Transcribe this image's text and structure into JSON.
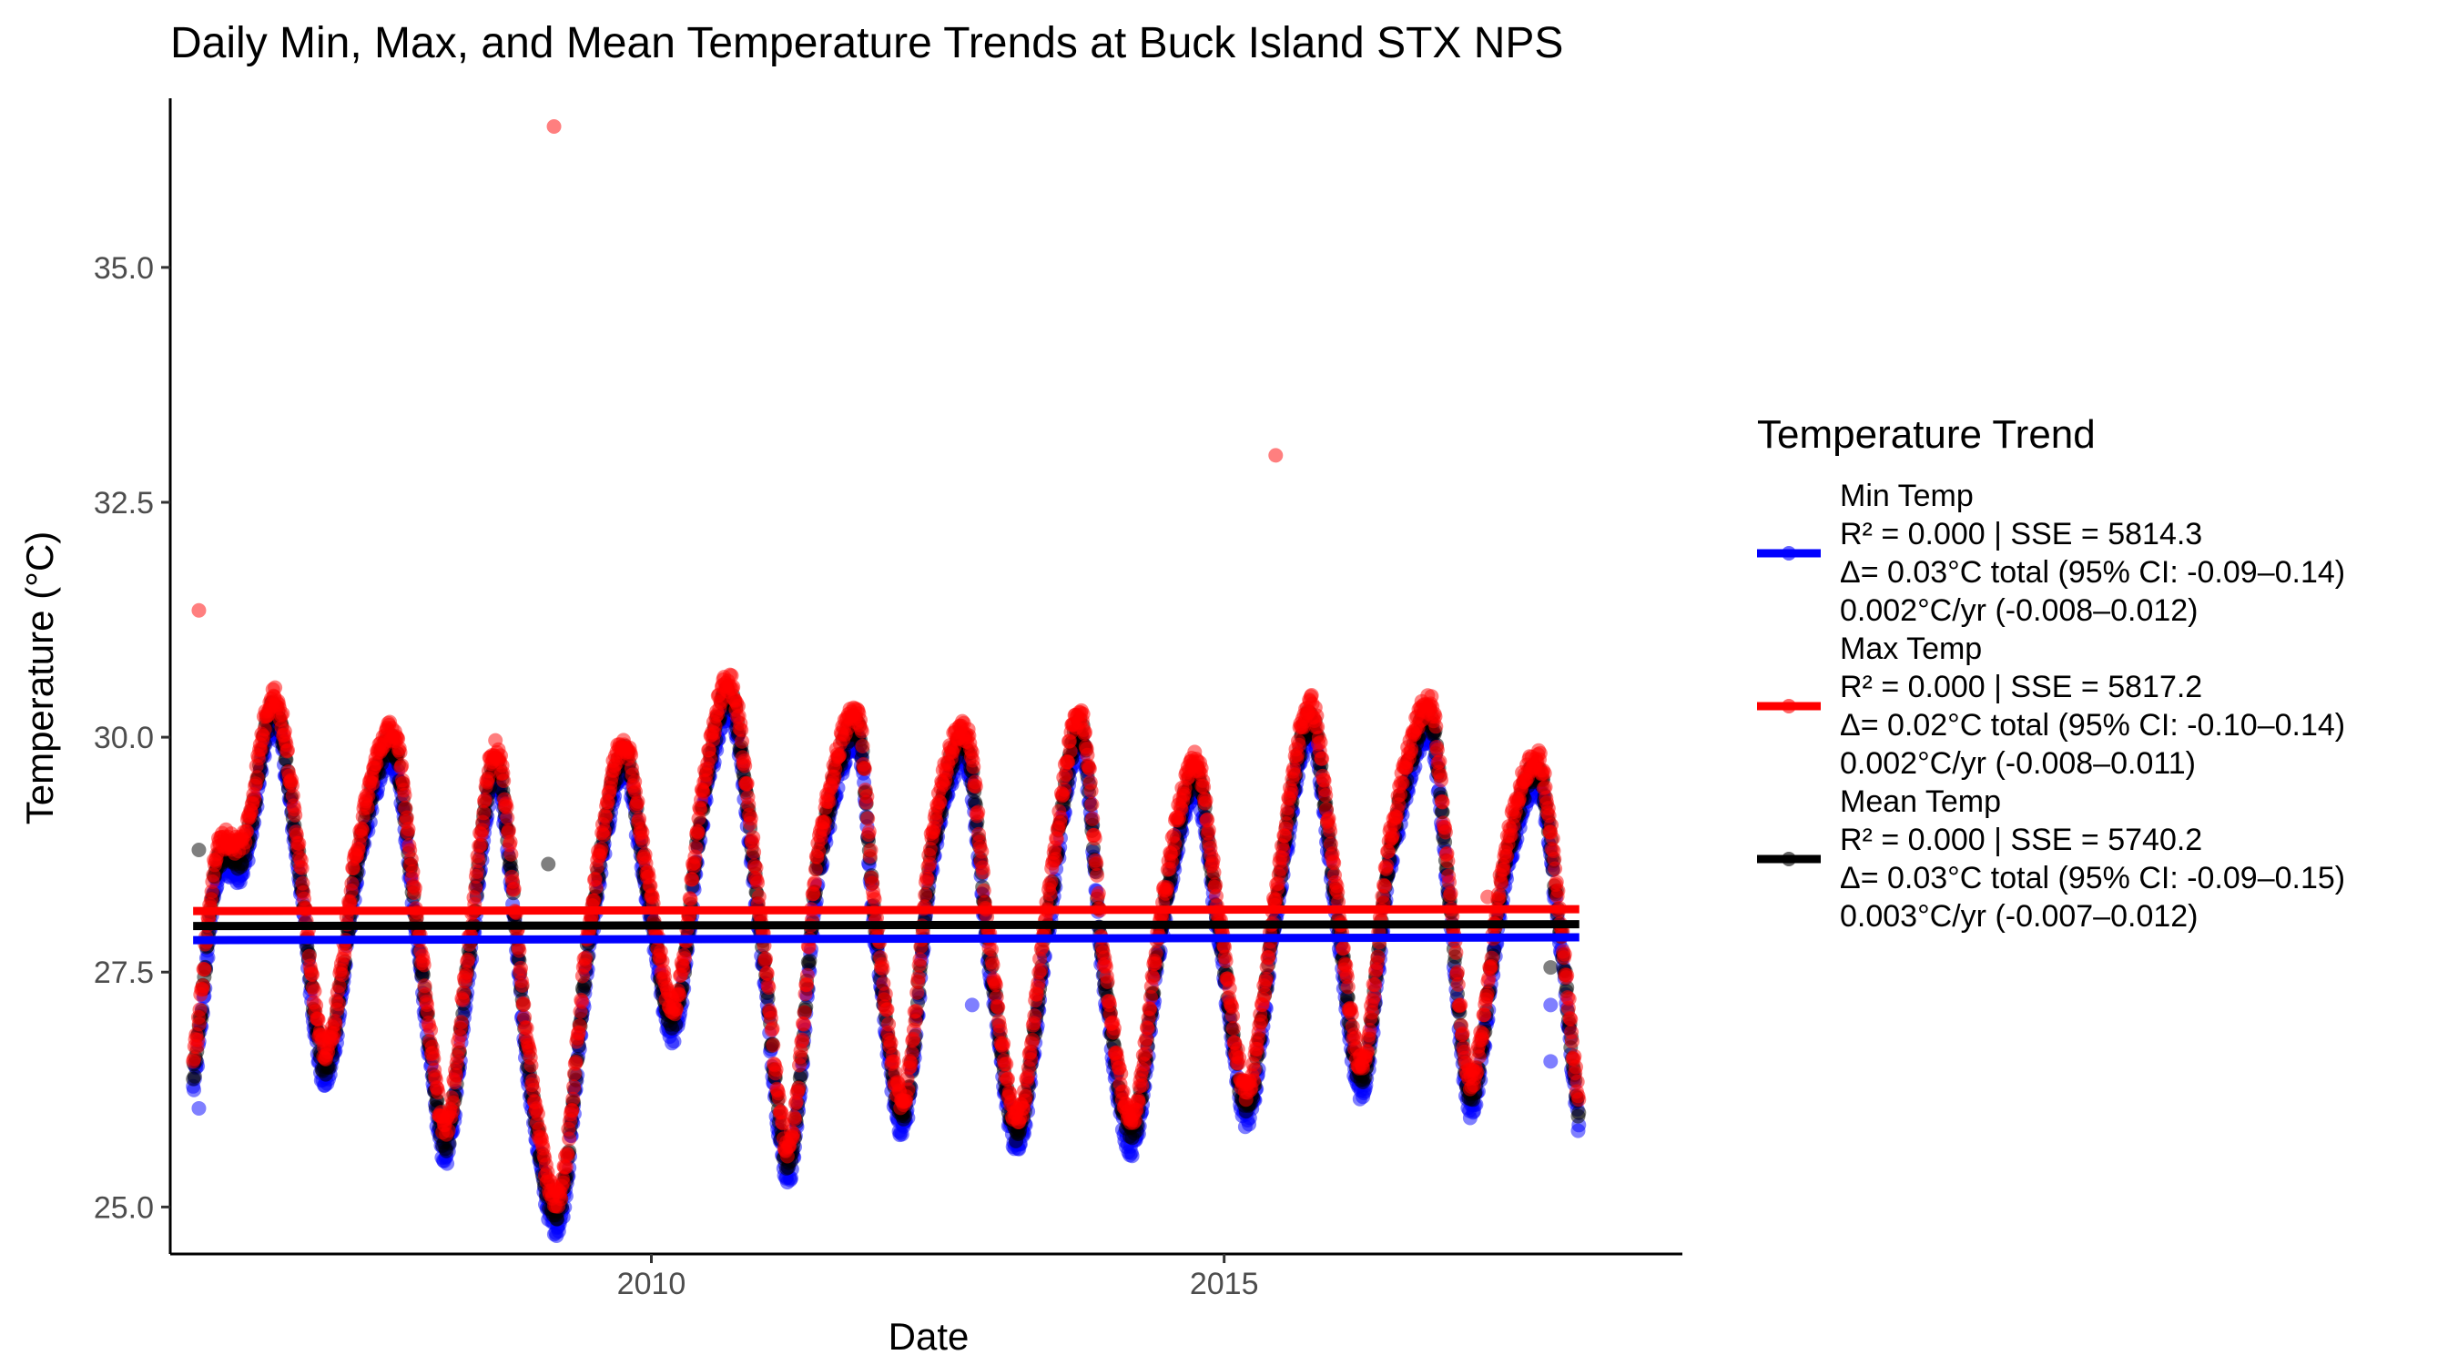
{
  "chart_data": {
    "type": "scatter",
    "title": "Daily Min, Max, and Mean Temperature Trends at Buck Island STX NPS",
    "xlabel": "Date",
    "ylabel": "Temperature (°C)",
    "xlim": [
      2005.8,
      2019.0
    ],
    "ylim": [
      24.5,
      36.8
    ],
    "x_ticks": [
      2010,
      2015
    ],
    "x_tick_labels": [
      "2010",
      "2015"
    ],
    "y_ticks": [
      25.0,
      27.5,
      30.0,
      32.5,
      35.0
    ],
    "y_tick_labels": [
      "25.0",
      "27.5",
      "30.0",
      "32.5",
      "35.0"
    ],
    "grid": false,
    "legend": {
      "title": "Temperature Trend",
      "placement": "right",
      "entries": [
        {
          "name": "Min Temp",
          "lines": [
            "R² = 0.000 | SSE = 5814.3",
            "Δ= 0.03°C total (95% CI: -0.09–0.14)",
            "0.002°C/yr (-0.008–0.012)"
          ]
        },
        {
          "name": "Max Temp",
          "lines": [
            "R² = 0.000 | SSE = 5817.2",
            "Δ= 0.02°C total (95% CI: -0.10–0.14)",
            "0.002°C/yr (-0.008–0.011)"
          ]
        },
        {
          "name": "Mean Temp",
          "lines": [
            "R² = 0.000 | SSE = 5740.2",
            "Δ= 0.03°C total (95% CI: -0.09–0.15)",
            "0.003°C/yr (-0.007–0.012)"
          ]
        }
      ]
    },
    "series": [
      {
        "name": "Min Temp",
        "color": "#0000ff",
        "offset": -0.15,
        "trend": [
          27.84,
          27.87
        ],
        "x": [
          2006.0,
          2006.2,
          2006.45,
          2006.7,
          2006.9,
          2007.15,
          2007.45,
          2007.75,
          2007.95,
          2008.2,
          2008.4,
          2008.65,
          2008.95,
          2009.2,
          2009.45,
          2009.75,
          2009.95,
          2010.2,
          2010.45,
          2010.7,
          2010.95,
          2011.2,
          2011.45,
          2011.8,
          2011.95,
          2012.2,
          2012.45,
          2012.75,
          2012.95,
          2013.2,
          2013.45,
          2013.75,
          2013.95,
          2014.2,
          2014.45,
          2014.75,
          2014.95,
          2015.2,
          2015.45,
          2015.75,
          2015.95,
          2016.2,
          2016.45,
          2016.8,
          2016.95,
          2017.15,
          2017.45,
          2017.75,
          2017.95,
          2018.1
        ],
        "y": [
          26.4,
          28.6,
          28.8,
          30.3,
          28.9,
          26.5,
          28.8,
          29.9,
          28.0,
          25.7,
          27.6,
          29.7,
          26.3,
          25.0,
          27.8,
          29.8,
          28.5,
          27.0,
          29.3,
          30.4,
          28.0,
          25.5,
          28.6,
          30.1,
          28.0,
          26.0,
          28.8,
          29.9,
          27.7,
          25.8,
          28.0,
          30.1,
          27.5,
          25.8,
          28.0,
          29.6,
          28.0,
          26.1,
          28.2,
          30.2,
          28.5,
          26.4,
          28.8,
          30.2,
          28.5,
          26.2,
          28.6,
          29.6,
          27.8,
          26.0
        ]
      },
      {
        "name": "Max Temp",
        "color": "#ff0000",
        "offset": 0.15,
        "trend": [
          28.15,
          28.17
        ],
        "x": [
          2006.0,
          2006.2,
          2006.45,
          2006.7,
          2006.9,
          2007.15,
          2007.45,
          2007.75,
          2007.95,
          2008.2,
          2008.4,
          2008.65,
          2008.95,
          2009.2,
          2009.45,
          2009.75,
          2009.95,
          2010.2,
          2010.45,
          2010.7,
          2010.95,
          2011.2,
          2011.45,
          2011.8,
          2011.95,
          2012.2,
          2012.45,
          2012.75,
          2012.95,
          2013.2,
          2013.45,
          2013.75,
          2013.95,
          2014.2,
          2014.45,
          2014.75,
          2014.95,
          2015.2,
          2015.45,
          2015.75,
          2015.95,
          2016.2,
          2016.45,
          2016.8,
          2016.95,
          2017.15,
          2017.45,
          2017.75,
          2017.95,
          2018.1
        ],
        "y": [
          26.4,
          28.6,
          28.8,
          30.3,
          28.9,
          26.5,
          28.8,
          29.9,
          28.0,
          25.7,
          27.6,
          29.7,
          26.3,
          25.0,
          27.8,
          29.8,
          28.5,
          27.0,
          29.3,
          30.4,
          28.0,
          25.5,
          28.6,
          30.1,
          28.0,
          26.0,
          28.8,
          29.9,
          27.7,
          25.8,
          28.0,
          30.1,
          27.5,
          25.8,
          28.0,
          29.6,
          28.0,
          26.1,
          28.2,
          30.2,
          28.5,
          26.4,
          28.8,
          30.2,
          28.5,
          26.2,
          28.6,
          29.6,
          27.8,
          26.0
        ]
      },
      {
        "name": "Mean Temp",
        "color": "#000000",
        "offset": 0.0,
        "trend": [
          27.99,
          28.01
        ],
        "x": [
          2006.0,
          2006.2,
          2006.45,
          2006.7,
          2006.9,
          2007.15,
          2007.45,
          2007.75,
          2007.95,
          2008.2,
          2008.4,
          2008.65,
          2008.95,
          2009.2,
          2009.45,
          2009.75,
          2009.95,
          2010.2,
          2010.45,
          2010.7,
          2010.95,
          2011.2,
          2011.45,
          2011.8,
          2011.95,
          2012.2,
          2012.45,
          2012.75,
          2012.95,
          2013.2,
          2013.45,
          2013.75,
          2013.95,
          2014.2,
          2014.45,
          2014.75,
          2014.95,
          2015.2,
          2015.45,
          2015.75,
          2015.95,
          2016.2,
          2016.45,
          2016.8,
          2016.95,
          2017.15,
          2017.45,
          2017.75,
          2017.95,
          2018.1
        ],
        "y": [
          26.4,
          28.6,
          28.8,
          30.3,
          28.9,
          26.5,
          28.8,
          29.9,
          28.0,
          25.7,
          27.6,
          29.7,
          26.3,
          25.0,
          27.8,
          29.8,
          28.5,
          27.0,
          29.3,
          30.4,
          28.0,
          25.5,
          28.6,
          30.1,
          28.0,
          26.0,
          28.8,
          29.9,
          27.7,
          25.8,
          28.0,
          30.1,
          27.5,
          25.8,
          28.0,
          29.6,
          28.0,
          26.1,
          28.2,
          30.2,
          28.5,
          26.4,
          28.8,
          30.2,
          28.5,
          26.2,
          28.6,
          29.6,
          27.8,
          26.0
        ]
      }
    ],
    "outliers": [
      {
        "series": "Max Temp",
        "x": 2006.05,
        "y": 31.35
      },
      {
        "series": "Max Temp",
        "x": 2009.15,
        "y": 36.5
      },
      {
        "series": "Max Temp",
        "x": 2015.45,
        "y": 33.0
      },
      {
        "series": "Max Temp",
        "x": 2017.3,
        "y": 28.3
      },
      {
        "series": "Mean Temp",
        "x": 2006.05,
        "y": 28.8
      },
      {
        "series": "Mean Temp",
        "x": 2009.1,
        "y": 28.65
      },
      {
        "series": "Mean Temp",
        "x": 2017.85,
        "y": 27.55
      },
      {
        "series": "Min Temp",
        "x": 2006.05,
        "y": 26.05
      },
      {
        "series": "Min Temp",
        "x": 2012.8,
        "y": 27.15
      },
      {
        "series": "Min Temp",
        "x": 2017.85,
        "y": 26.55
      },
      {
        "series": "Min Temp",
        "x": 2017.85,
        "y": 27.15
      },
      {
        "series": "Min Temp",
        "x": 2007.9,
        "y": 28.5
      }
    ]
  }
}
